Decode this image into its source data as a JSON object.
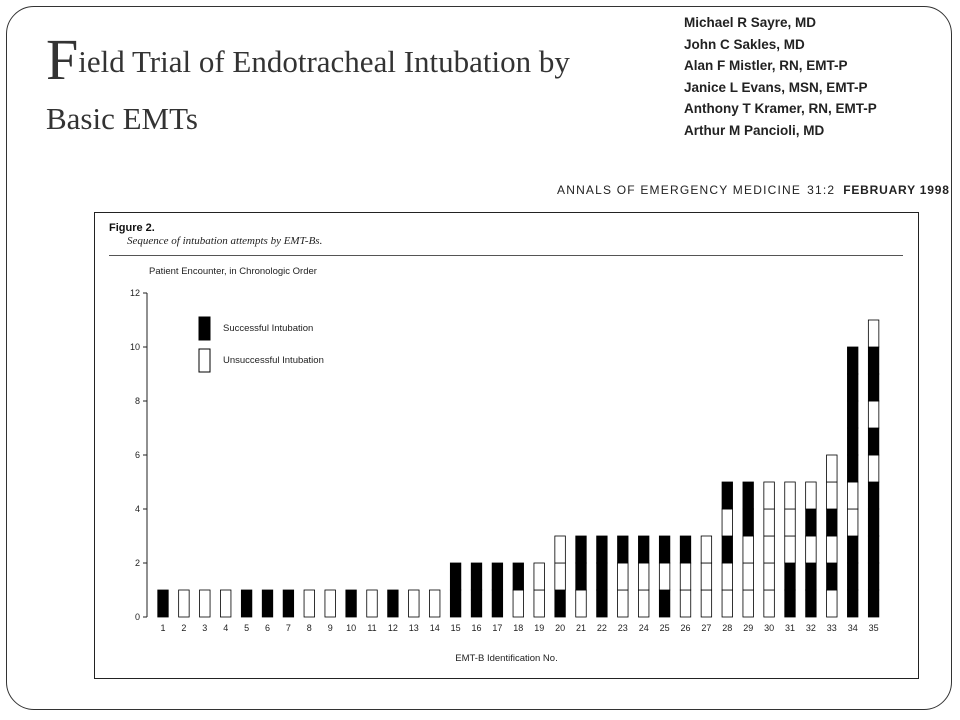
{
  "slide": {
    "title_initial": "F",
    "title_rest": "ield Trial of Endotracheal Intubation by",
    "title_line2": "Basic EMTs",
    "authors": [
      "Michael R Sayre, MD",
      "John C Sakles, MD",
      "Alan F Mistler, RN, EMT-P",
      "Janice L Evans, MSN, EMT-P",
      "Anthony T Kramer, RN, EMT-P",
      "Arthur M Pancioli, MD"
    ],
    "journal": "ANNALS OF EMERGENCY MEDICINE",
    "issue": "31:2",
    "date": "FEBRUARY 1998"
  },
  "figure": {
    "label": "Figure 2.",
    "caption": "Sequence of intubation attempts by EMT-Bs."
  },
  "chart_data": {
    "type": "bar",
    "stacked": true,
    "title": "",
    "ylabel": "Patient Encounter, in Chronologic Order",
    "xlabel": "EMT-B Identification No.",
    "ylim": [
      0,
      12
    ],
    "yticks": [
      0,
      2,
      4,
      6,
      8,
      10,
      12
    ],
    "grid": false,
    "legend_placement": "top-left",
    "legend": [
      {
        "key": "S",
        "label": "Successful Intubation",
        "color": "#000000"
      },
      {
        "key": "U",
        "label": "Unsuccessful Intubation",
        "color": "#ffffff"
      }
    ],
    "categories": [
      "1",
      "2",
      "3",
      "4",
      "5",
      "6",
      "7",
      "8",
      "9",
      "10",
      "11",
      "12",
      "13",
      "14",
      "15",
      "16",
      "17",
      "18",
      "19",
      "20",
      "21",
      "22",
      "23",
      "24",
      "25",
      "26",
      "27",
      "28",
      "29",
      "30",
      "31",
      "32",
      "33",
      "34",
      "35"
    ],
    "note": "Each bar lists encounters bottom-to-top in chronologic order; S = successful, U = unsuccessful.",
    "sequences": [
      "S",
      "U",
      "U",
      "U",
      "S",
      "S",
      "S",
      "U",
      "U",
      "S",
      "U",
      "S",
      "U",
      "U",
      "SS",
      "SS",
      "SS",
      "US",
      "UU",
      "SUU",
      "USS",
      "SSS",
      "UUS",
      "UUS",
      "SUS",
      "UUS",
      "UUU",
      "UUSUS",
      "UUUSS",
      "UUUUU",
      "SSUUU",
      "SSUSU",
      "USUSUU",
      "SSSUUSSSSS",
      "SSSSSUSUSSU"
    ]
  }
}
